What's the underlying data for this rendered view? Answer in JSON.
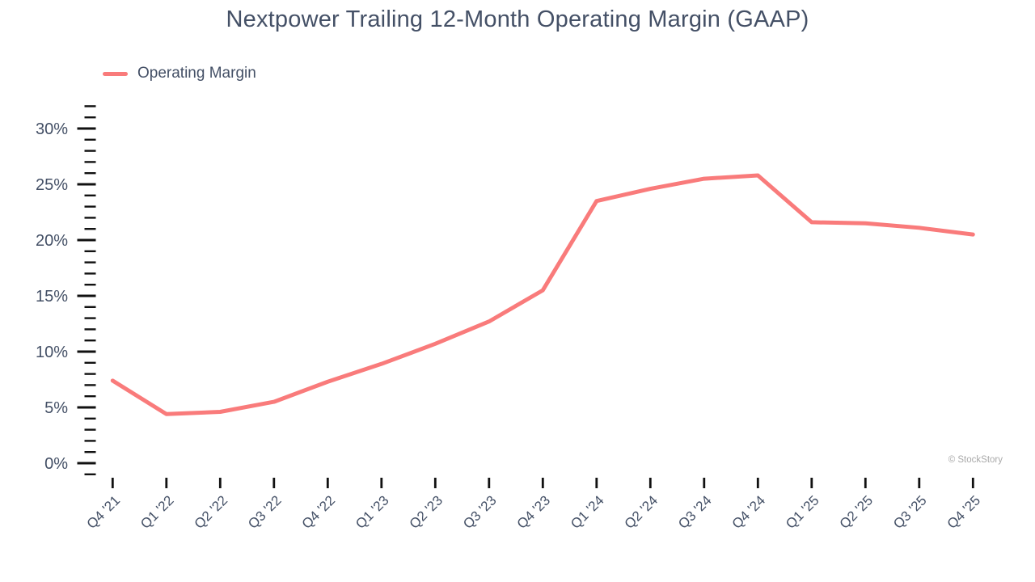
{
  "title": "Nextpower Trailing 12-Month Operating Margin (GAAP)",
  "legend": {
    "label": "Operating Margin"
  },
  "watermark": "© StockStory",
  "colors": {
    "line": "#F97B7B",
    "text": "#445066",
    "tick": "#111111",
    "watermark": "#A9A9A9"
  },
  "chart_data": {
    "type": "line",
    "title": "Nextpower Trailing 12-Month Operating Margin (GAAP)",
    "categories": [
      "Q4 '21",
      "Q1 '22",
      "Q2 '22",
      "Q3 '22",
      "Q4 '22",
      "Q1 '23",
      "Q2 '23",
      "Q3 '23",
      "Q4 '23",
      "Q1 '24",
      "Q2 '24",
      "Q3 '24",
      "Q4 '24",
      "Q1 '25",
      "Q2 '25",
      "Q3 '25",
      "Q4 '25"
    ],
    "series": [
      {
        "name": "Operating Margin",
        "values": [
          7.4,
          4.4,
          4.6,
          5.5,
          7.3,
          8.9,
          10.7,
          12.7,
          15.5,
          23.5,
          24.6,
          25.5,
          25.8,
          21.6,
          21.5,
          21.1,
          20.5
        ]
      }
    ],
    "unit": "%",
    "xlabel": "",
    "ylabel": "",
    "ylim": [
      -1,
      32
    ],
    "y_major_ticks": [
      0,
      5,
      10,
      15,
      20,
      25,
      30
    ],
    "y_minor_step": 1,
    "y_tick_labels": [
      "0%",
      "5%",
      "10%",
      "15%",
      "20%",
      "25%",
      "30%"
    ],
    "grid": false,
    "legend_position": "top-left",
    "x_label_rotation_deg": -45
  }
}
